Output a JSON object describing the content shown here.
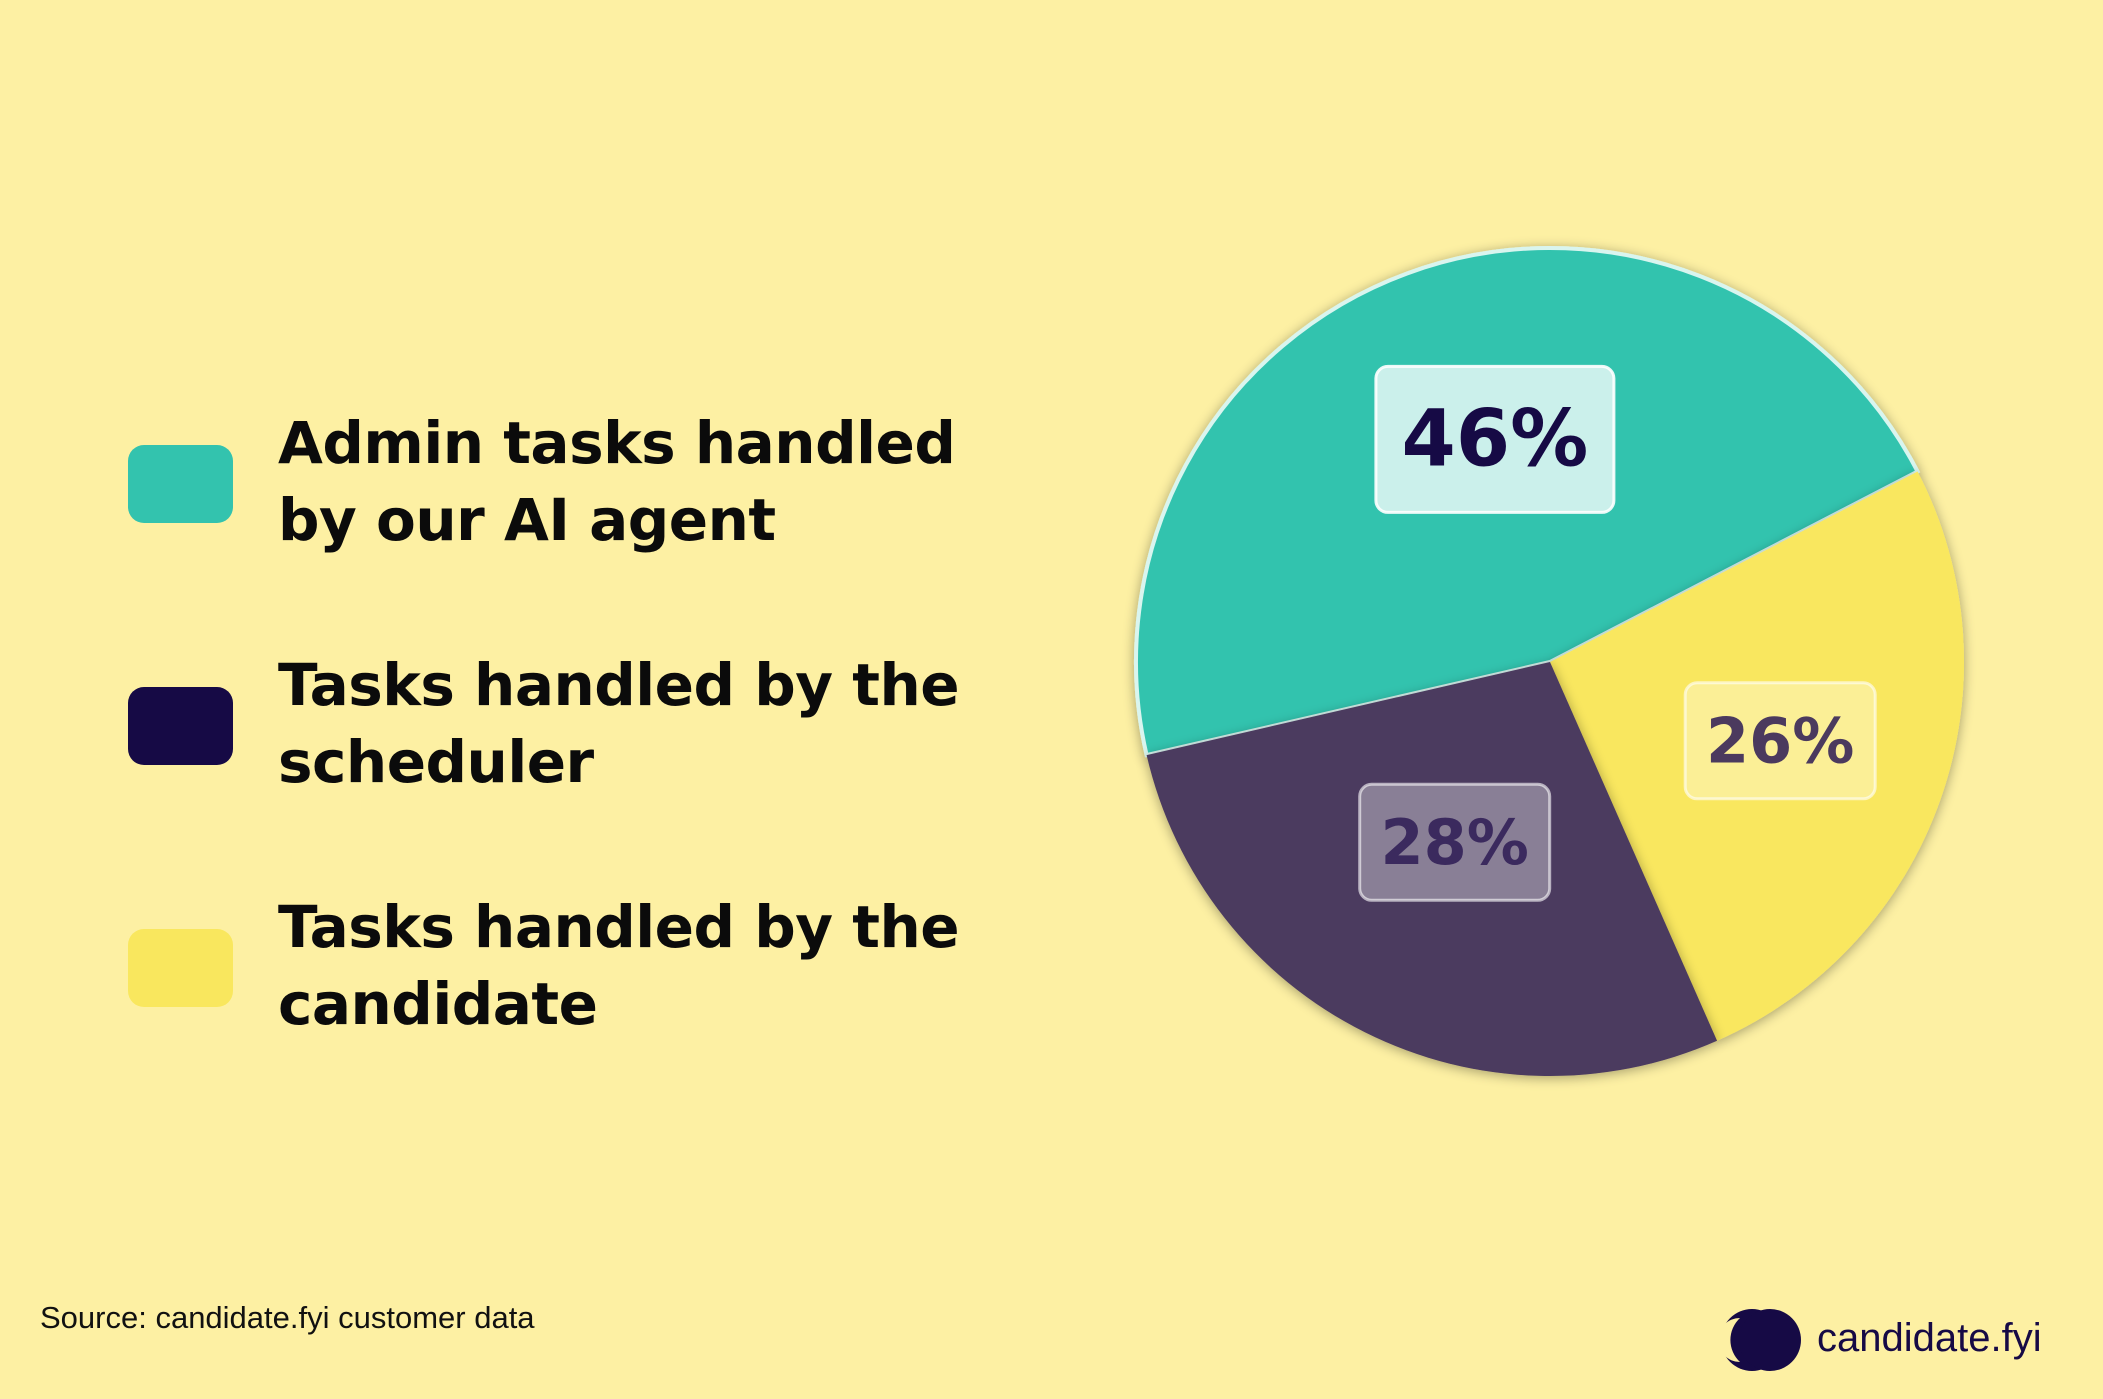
{
  "colors": {
    "background": "#fdf0a3",
    "teal": "#33c3ae",
    "purple": "#4b3a5e",
    "yellow": "#f9e75e",
    "navy": "#160a45",
    "text": "#0b0b0b"
  },
  "legend": [
    {
      "label": "Admin tasks handled by our AI agent",
      "color": "#33c3ae"
    },
    {
      "label": "Tasks handled by the scheduler",
      "color": "#160a45"
    },
    {
      "label": "Tasks handled by the candidate",
      "color": "#f9e75e"
    }
  ],
  "chart_data": {
    "type": "pie",
    "slices": [
      {
        "label": "Admin tasks handled by our AI agent",
        "value": 46,
        "display": "46%",
        "color": "#33c3ae"
      },
      {
        "label": "Tasks handled by the candidate",
        "value": 26,
        "display": "26%",
        "color": "#f9e75e"
      },
      {
        "label": "Tasks handled by the scheduler",
        "value": 28,
        "display": "28%",
        "color": "#4b3a5e"
      }
    ],
    "unit": "%",
    "legend_position": "left"
  },
  "source": {
    "text": "Source: candidate.fyi customer data"
  },
  "brand": {
    "name": "candidate.fyi",
    "logo_icon": "candidate-fyi-logo-icon"
  }
}
